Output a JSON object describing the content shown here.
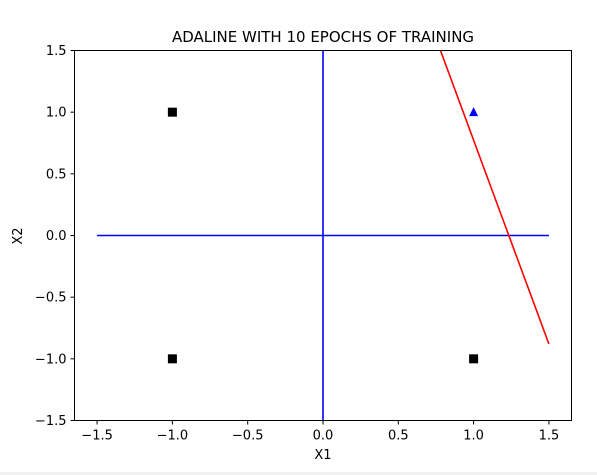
{
  "chart_data": {
    "type": "scatter",
    "title": "ADALINE WITH 10 EPOCHS OF TRAINING",
    "xlabel": "X1",
    "ylabel": "X2",
    "xlim": [
      -1.65,
      1.65
    ],
    "ylim": [
      -1.5,
      1.5
    ],
    "xticks": [
      -1.5,
      -1.0,
      -0.5,
      0.0,
      0.5,
      1.0,
      1.5
    ],
    "xtick_labels": [
      "−1.5",
      "−1.0",
      "−0.5",
      "0.0",
      "0.5",
      "1.0",
      "1.5"
    ],
    "yticks": [
      -1.5,
      -1.0,
      -0.5,
      0.0,
      0.5,
      1.0,
      1.5
    ],
    "ytick_labels": [
      "−1.5",
      "−1.0",
      "−0.5",
      "0.0",
      "0.5",
      "1.0",
      "1.5"
    ],
    "grid": false,
    "points": [
      {
        "x": -1,
        "y": 1,
        "marker": "square",
        "color": "#000000"
      },
      {
        "x": -1,
        "y": -1,
        "marker": "square",
        "color": "#000000"
      },
      {
        "x": 1,
        "y": -1,
        "marker": "square",
        "color": "#000000"
      },
      {
        "x": 1,
        "y": 1,
        "marker": "triangle",
        "color": "#0000ff"
      }
    ],
    "lines": [
      {
        "x": [
          -1.5,
          1.5
        ],
        "y": [
          0,
          0
        ],
        "color": "#0000ff"
      },
      {
        "x": [
          0,
          0
        ],
        "y": [
          -1.5,
          1.5
        ],
        "color": "#0000ff"
      },
      {
        "x": [
          0.78,
          1.5
        ],
        "y": [
          1.5,
          -0.88
        ],
        "color": "#ff0000"
      }
    ]
  }
}
